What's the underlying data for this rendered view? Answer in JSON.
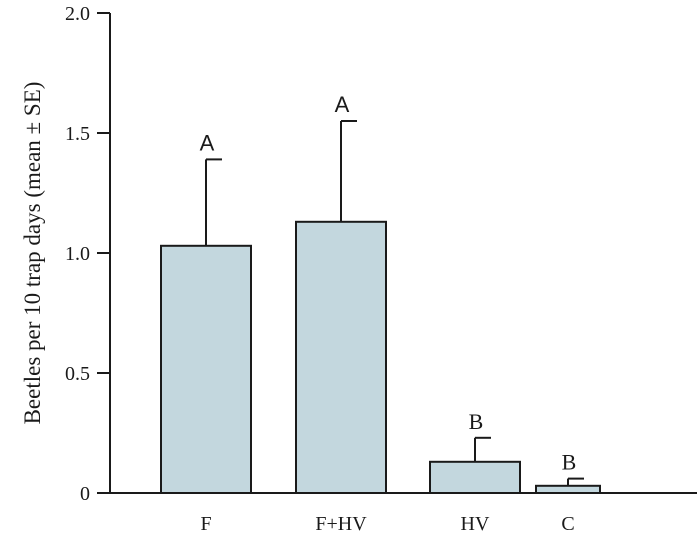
{
  "chart_data": {
    "type": "bar",
    "ylabel": "Beetles per 10 trap days (mean ± SE)",
    "xlabel": "",
    "ylim": [
      0,
      2.0
    ],
    "yticks": [
      {
        "value": 0,
        "label": "0"
      },
      {
        "value": 0.5,
        "label": "0.5"
      },
      {
        "value": 1.0,
        "label": "1.0"
      },
      {
        "value": 1.5,
        "label": "1.5"
      },
      {
        "value": 2.0,
        "label": "2.0"
      }
    ],
    "categories": [
      "F",
      "F+HV",
      "HV",
      "C"
    ],
    "values": [
      1.03,
      1.13,
      0.13,
      0.03
    ],
    "errors": [
      0.36,
      0.42,
      0.1,
      0.03
    ],
    "significance_labels": [
      "A",
      "A",
      "B",
      "B"
    ],
    "grid": false,
    "colors": {
      "bar_fill": "#c3d7de",
      "bar_stroke": "#1a1a1a",
      "axis": "#1a1a1a"
    }
  }
}
